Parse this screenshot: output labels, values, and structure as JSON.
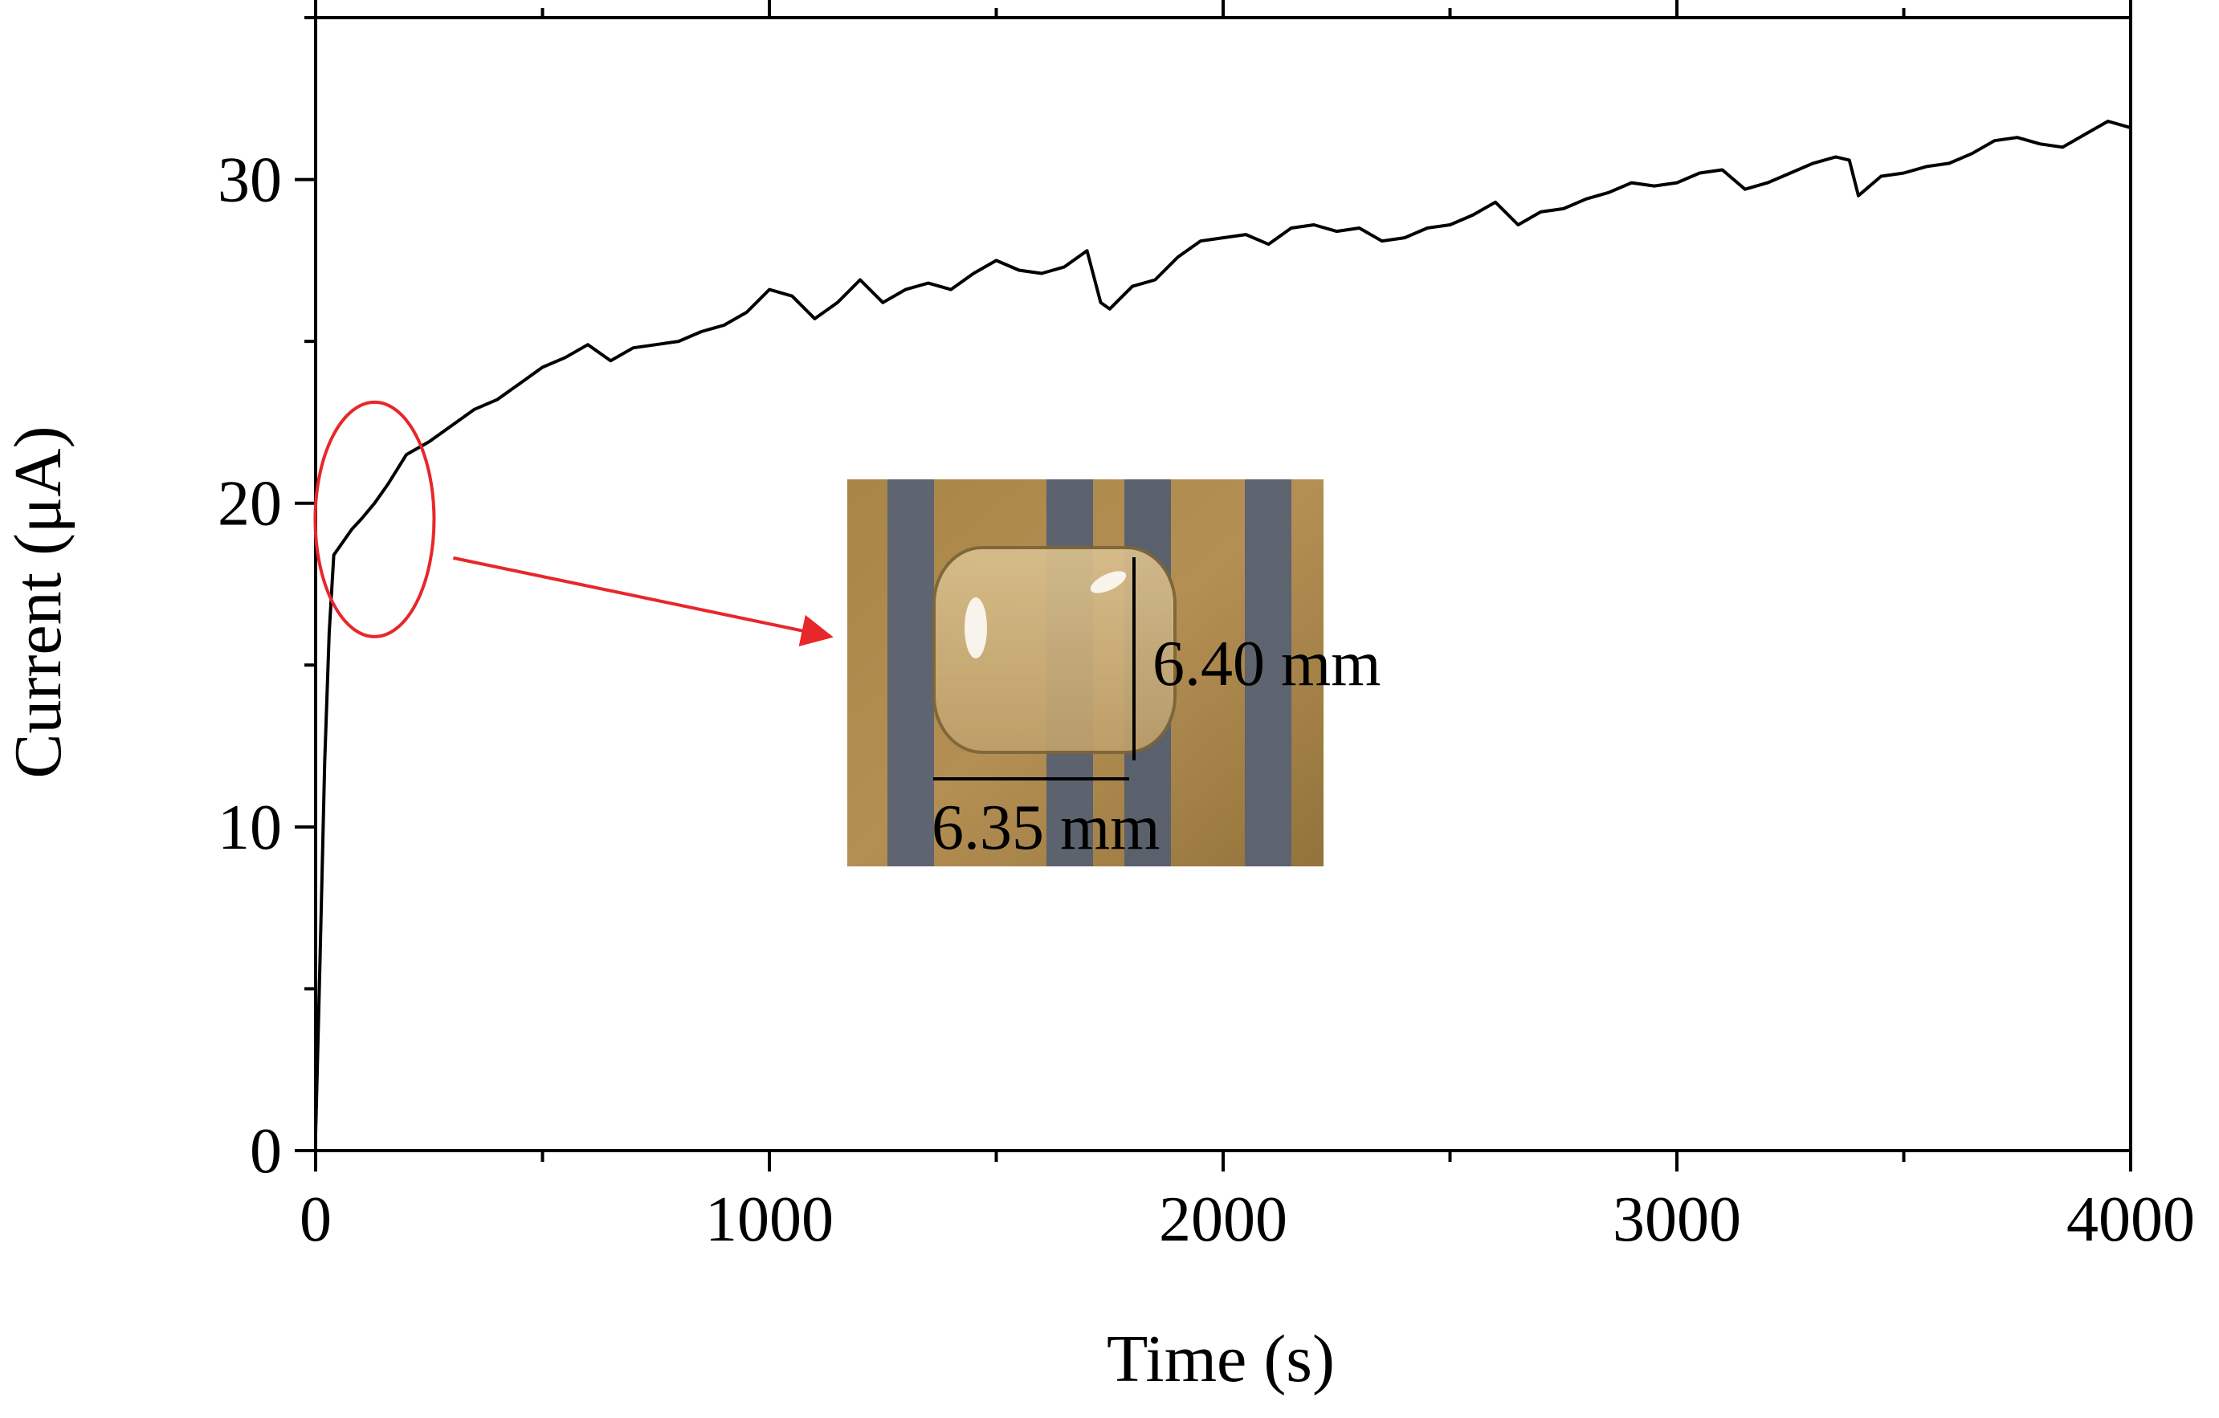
{
  "chart_data": {
    "type": "line",
    "title": "",
    "xlabel": "Time (s)",
    "ylabel": "Current (μA)",
    "xlim": [
      0,
      4000
    ],
    "ylim": [
      0,
      35
    ],
    "xticks": [
      0,
      1000,
      2000,
      3000,
      4000
    ],
    "yticks": [
      0,
      10,
      20,
      30
    ],
    "grid": false,
    "legend": "none",
    "series": [
      {
        "color": "#000000",
        "points": [
          [
            0,
            0.5
          ],
          [
            10,
            6
          ],
          [
            20,
            12
          ],
          [
            30,
            16
          ],
          [
            40,
            18.4
          ],
          [
            60,
            18.8
          ],
          [
            80,
            19.2
          ],
          [
            100,
            19.5
          ],
          [
            130,
            20.0
          ],
          [
            160,
            20.6
          ],
          [
            200,
            21.5
          ],
          [
            250,
            21.9
          ],
          [
            300,
            22.4
          ],
          [
            350,
            22.9
          ],
          [
            400,
            23.2
          ],
          [
            450,
            23.7
          ],
          [
            500,
            24.2
          ],
          [
            550,
            24.5
          ],
          [
            600,
            24.9
          ],
          [
            650,
            24.4
          ],
          [
            700,
            24.8
          ],
          [
            750,
            24.9
          ],
          [
            800,
            25.0
          ],
          [
            850,
            25.3
          ],
          [
            900,
            25.5
          ],
          [
            950,
            25.9
          ],
          [
            1000,
            26.6
          ],
          [
            1050,
            26.4
          ],
          [
            1100,
            25.7
          ],
          [
            1150,
            26.2
          ],
          [
            1200,
            26.9
          ],
          [
            1250,
            26.2
          ],
          [
            1300,
            26.6
          ],
          [
            1350,
            26.8
          ],
          [
            1400,
            26.6
          ],
          [
            1450,
            27.1
          ],
          [
            1500,
            27.5
          ],
          [
            1550,
            27.2
          ],
          [
            1600,
            27.1
          ],
          [
            1650,
            27.3
          ],
          [
            1700,
            27.8
          ],
          [
            1730,
            26.2
          ],
          [
            1750,
            26.0
          ],
          [
            1800,
            26.7
          ],
          [
            1850,
            26.9
          ],
          [
            1900,
            27.6
          ],
          [
            1950,
            28.1
          ],
          [
            2000,
            28.2
          ],
          [
            2050,
            28.3
          ],
          [
            2100,
            28.0
          ],
          [
            2150,
            28.5
          ],
          [
            2200,
            28.6
          ],
          [
            2250,
            28.4
          ],
          [
            2300,
            28.5
          ],
          [
            2350,
            28.1
          ],
          [
            2400,
            28.2
          ],
          [
            2450,
            28.5
          ],
          [
            2500,
            28.6
          ],
          [
            2550,
            28.9
          ],
          [
            2600,
            29.3
          ],
          [
            2650,
            28.6
          ],
          [
            2700,
            29.0
          ],
          [
            2750,
            29.1
          ],
          [
            2800,
            29.4
          ],
          [
            2850,
            29.6
          ],
          [
            2900,
            29.9
          ],
          [
            2950,
            29.8
          ],
          [
            3000,
            29.9
          ],
          [
            3050,
            30.2
          ],
          [
            3100,
            30.3
          ],
          [
            3150,
            29.7
          ],
          [
            3200,
            29.9
          ],
          [
            3250,
            30.2
          ],
          [
            3300,
            30.5
          ],
          [
            3350,
            30.7
          ],
          [
            3380,
            30.6
          ],
          [
            3400,
            29.5
          ],
          [
            3450,
            30.1
          ],
          [
            3500,
            30.2
          ],
          [
            3550,
            30.4
          ],
          [
            3600,
            30.5
          ],
          [
            3650,
            30.8
          ],
          [
            3700,
            31.2
          ],
          [
            3750,
            31.3
          ],
          [
            3800,
            31.1
          ],
          [
            3850,
            31.0
          ],
          [
            3900,
            31.4
          ],
          [
            3950,
            31.8
          ],
          [
            4000,
            31.6
          ]
        ]
      }
    ],
    "annotations": {
      "highlight": {
        "x_center": 130,
        "y_center": 19.5,
        "color": "#e8272a"
      },
      "inset_labels": [
        "6.40 mm",
        "6.35 mm"
      ]
    }
  }
}
